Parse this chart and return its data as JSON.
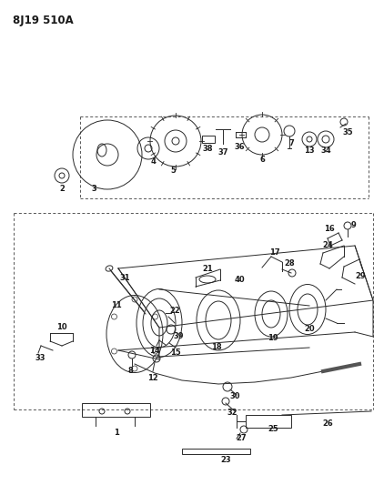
{
  "title": "8J19 510A",
  "bg_color": "#ffffff",
  "line_color": "#2a2a2a",
  "text_color": "#1a1a1a",
  "fig_width": 4.22,
  "fig_height": 5.33,
  "dpi": 100,
  "title_fontsize": 8.5,
  "label_fontsize": 6.5
}
